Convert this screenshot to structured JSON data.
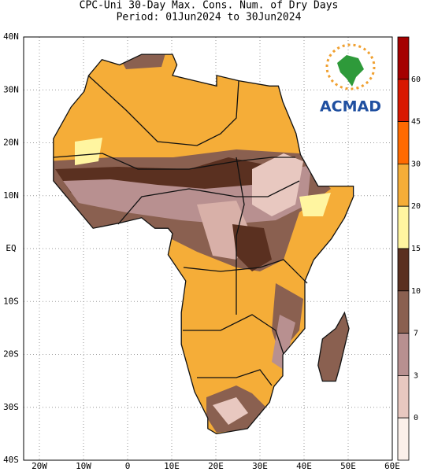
{
  "title": {
    "line1": "CPC-Uni 30-Day Max. Cons. Num. of Dry Days",
    "line2": "Period: 01Jun2024 to 30Jun2024"
  },
  "map": {
    "lat_labels": [
      "40N",
      "30N",
      "20N",
      "10N",
      "EQ",
      "10S",
      "20S",
      "30S",
      "40S"
    ],
    "lon_labels": [
      "20W",
      "10W",
      "0",
      "10E",
      "20E",
      "30E",
      "40E",
      "50E",
      "60E"
    ]
  },
  "logo": "ACMAD",
  "colorbar": {
    "labels": [
      60,
      45,
      30,
      20,
      15,
      10,
      7,
      3,
      0
    ]
  }
}
